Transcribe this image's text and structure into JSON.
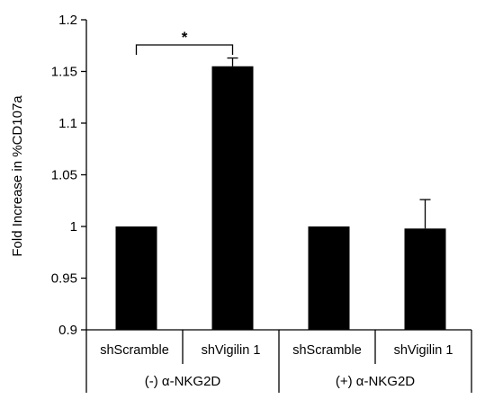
{
  "chart_data": {
    "type": "bar",
    "title": "",
    "xlabel": "",
    "ylabel": "Fold Increase in %CD107a",
    "ylim": [
      0.9,
      1.2
    ],
    "yticks": [
      0.9,
      0.95,
      1,
      1.05,
      1.1,
      1.15,
      1.2
    ],
    "ytick_labels": [
      "0.9",
      "0.95",
      "1",
      "1.05",
      "1.1",
      "1.15",
      "1.2"
    ],
    "categories": [
      "shScramble",
      "shVigilin 1",
      "shScramble",
      "shVigilin 1"
    ],
    "groups": [
      {
        "label": "(-) α-NKG2D",
        "categories": [
          0,
          1
        ]
      },
      {
        "label": "(+) α-NKG2D",
        "categories": [
          2,
          3
        ]
      }
    ],
    "values": [
      1.0,
      1.155,
      1.0,
      0.998
    ],
    "errors": [
      0,
      0.008,
      0,
      0.028
    ],
    "bar_color": "#000000",
    "grid": false,
    "significance": [
      {
        "from": 0,
        "to": 1,
        "label": "*"
      }
    ]
  }
}
